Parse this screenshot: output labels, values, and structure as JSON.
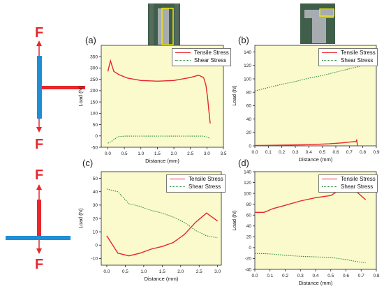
{
  "colors": {
    "tensile": "#e8262b",
    "shear": "#2e8b3e",
    "plot_bg": "#fafacd",
    "force_arrow": "#e8262b",
    "member_blue": "#1e8fd6",
    "member_red": "#e8262b",
    "thumb_dark": "#3f5f4a",
    "thumb_highlight": "#f2e600"
  },
  "diagrams": {
    "top_force_label": "F",
    "bottom_force_label": "F"
  },
  "chart_data": [
    {
      "panel_label": "(a)",
      "type": "line",
      "xlabel": "Distance (mm)",
      "ylabel": "Load (N)",
      "xlim": [
        -0.2,
        3.5
      ],
      "ylim": [
        -50,
        400
      ],
      "x_ticks": [
        "0.0",
        "0.5",
        "1.0",
        "1.5",
        "2.0",
        "2.5",
        "3.0",
        "3.5"
      ],
      "y_ticks": [
        "-50",
        "0",
        "50",
        "100",
        "150",
        "200",
        "250",
        "300",
        "350"
      ],
      "legend": "top-right",
      "series": [
        {
          "name": "Tensile Stress",
          "style": "solid",
          "x": [
            0.0,
            0.08,
            0.18,
            0.35,
            0.6,
            1.0,
            1.5,
            2.0,
            2.5,
            2.75,
            2.9,
            2.97,
            3.02,
            3.06,
            3.1
          ],
          "y": [
            285,
            332,
            285,
            270,
            255,
            245,
            242,
            245,
            258,
            268,
            258,
            225,
            170,
            110,
            55
          ]
        },
        {
          "name": "Shear Stress",
          "style": "dotted",
          "x": [
            0.0,
            0.1,
            0.2,
            0.3,
            0.5,
            1.0,
            1.5,
            2.0,
            2.5,
            2.9,
            3.0,
            3.1
          ],
          "y": [
            -32,
            -25,
            -15,
            -3,
            -1,
            -1,
            -1,
            -1,
            -1,
            -1,
            -5,
            -12
          ]
        }
      ]
    },
    {
      "panel_label": "(b)",
      "type": "line",
      "xlabel": "Distance (mm)",
      "ylabel": "Load (N)",
      "xlim": [
        0.0,
        0.9
      ],
      "ylim": [
        0,
        150
      ],
      "x_ticks": [
        "0.0",
        "0.1",
        "0.2",
        "0.3",
        "0.4",
        "0.5",
        "0.6",
        "0.7",
        "0.8",
        "0.9"
      ],
      "y_ticks": [
        "0",
        "20",
        "40",
        "60",
        "80",
        "100",
        "120",
        "140"
      ],
      "legend": "top-right",
      "series": [
        {
          "name": "Tensile Stress",
          "style": "solid",
          "x": [
            0.0,
            0.2,
            0.4,
            0.55,
            0.65,
            0.72,
            0.75,
            0.755,
            0.76
          ],
          "y": [
            0.5,
            1.0,
            1.8,
            3.0,
            4.5,
            6.0,
            6.5,
            9.5,
            0.5
          ]
        },
        {
          "name": "Shear Stress",
          "style": "dotted",
          "x": [
            0.0,
            0.1,
            0.2,
            0.3,
            0.4,
            0.5,
            0.6,
            0.7,
            0.8
          ],
          "y": [
            82,
            87,
            92,
            96,
            101,
            105,
            110,
            115,
            120
          ]
        }
      ]
    },
    {
      "panel_label": "(c)",
      "type": "line",
      "xlabel": "Distance (mm)",
      "ylabel": "Load (N)",
      "xlim": [
        -0.15,
        3.1
      ],
      "ylim": [
        -15,
        55
      ],
      "x_ticks": [
        "0.0",
        "0.5",
        "1.0",
        "1.5",
        "2.0",
        "2.5",
        "3.0"
      ],
      "y_ticks": [
        "-10",
        "0",
        "10",
        "20",
        "30",
        "40",
        "50"
      ],
      "legend": "top-right",
      "series": [
        {
          "name": "Tensile Stress",
          "style": "solid",
          "x": [
            0.0,
            0.3,
            0.6,
            0.9,
            1.2,
            1.5,
            1.8,
            2.1,
            2.4,
            2.7,
            3.0
          ],
          "y": [
            7,
            -6,
            -8,
            -6,
            -3,
            -1,
            2,
            8,
            17,
            24,
            18
          ]
        },
        {
          "name": "Shear Stress",
          "style": "dotted",
          "x": [
            0.0,
            0.3,
            0.6,
            0.9,
            1.2,
            1.5,
            1.8,
            2.1,
            2.4,
            2.7,
            3.0
          ],
          "y": [
            42,
            40,
            31,
            29,
            26,
            24,
            21,
            17,
            11,
            7,
            5.5
          ]
        }
      ]
    },
    {
      "panel_label": "(d)",
      "type": "line",
      "xlabel": "Distance (mm)",
      "ylabel": "Load (N)",
      "xlim": [
        0.0,
        0.8
      ],
      "ylim": [
        -40,
        140
      ],
      "x_ticks": [
        "0.0",
        "0.1",
        "0.2",
        "0.3",
        "0.4",
        "0.5",
        "0.6",
        "0.7",
        "0.8"
      ],
      "y_ticks": [
        "-40",
        "-20",
        "0",
        "20",
        "40",
        "60",
        "80",
        "100",
        "120",
        "140"
      ],
      "legend": "top-right",
      "series": [
        {
          "name": "Tensile Stress",
          "style": "solid",
          "x": [
            0.0,
            0.06,
            0.12,
            0.2,
            0.3,
            0.4,
            0.5,
            0.58,
            0.65,
            0.73
          ],
          "y": [
            65,
            65,
            72,
            78,
            86,
            92,
            96,
            110,
            108,
            88
          ]
        },
        {
          "name": "Shear Stress",
          "style": "dotted",
          "x": [
            0.0,
            0.06,
            0.12,
            0.2,
            0.3,
            0.4,
            0.5,
            0.6,
            0.7,
            0.73
          ],
          "y": [
            -11,
            -11,
            -12,
            -14,
            -16,
            -17,
            -18,
            -22,
            -27,
            -28
          ]
        }
      ]
    }
  ]
}
